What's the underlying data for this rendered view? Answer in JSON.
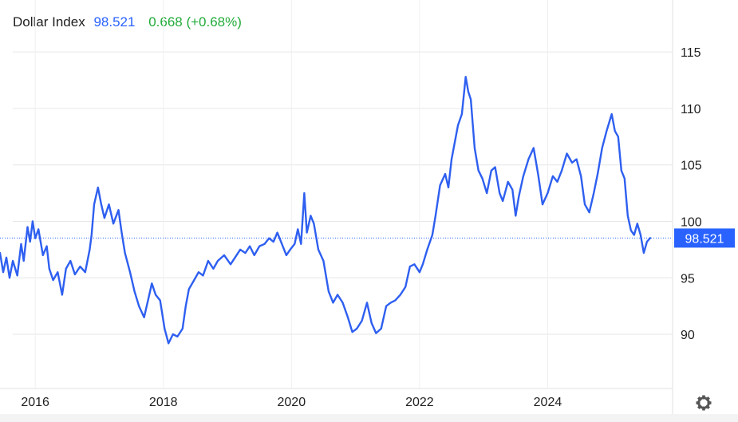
{
  "header": {
    "title": "Dollar Index",
    "price": "98.521",
    "change": "0.668 (+0.68%)"
  },
  "colors": {
    "line": "#2e5ff0",
    "price_badge": "#2962ff",
    "change_up": "#22ab3a",
    "grid": "#e6e6e6"
  },
  "icons": {
    "settings": "gear-icon"
  },
  "chart_data": {
    "type": "line",
    "title": "Dollar Index",
    "xlabel": "",
    "ylabel": "",
    "x_ticks": [
      "2016",
      "2018",
      "2020",
      "2022",
      "2024"
    ],
    "y_ticks": [
      90,
      95,
      100,
      105,
      110,
      115
    ],
    "xlim": [
      2015.45,
      2025.95
    ],
    "ylim": [
      85.2,
      119.6
    ],
    "grid": true,
    "last_value": 98.521,
    "series": [
      {
        "values": [
          [
            2015.45,
            97.2
          ],
          [
            2015.5,
            95.5
          ],
          [
            2015.55,
            96.8
          ],
          [
            2015.6,
            95.0
          ],
          [
            2015.65,
            96.5
          ],
          [
            2015.72,
            95.2
          ],
          [
            2015.78,
            98.0
          ],
          [
            2015.82,
            96.5
          ],
          [
            2015.88,
            99.5
          ],
          [
            2015.92,
            98.2
          ],
          [
            2015.96,
            100.0
          ],
          [
            2016.0,
            98.5
          ],
          [
            2016.05,
            99.3
          ],
          [
            2016.12,
            97.0
          ],
          [
            2016.18,
            97.8
          ],
          [
            2016.22,
            95.8
          ],
          [
            2016.28,
            94.8
          ],
          [
            2016.35,
            95.5
          ],
          [
            2016.42,
            93.5
          ],
          [
            2016.48,
            95.8
          ],
          [
            2016.55,
            96.5
          ],
          [
            2016.62,
            95.3
          ],
          [
            2016.7,
            96.0
          ],
          [
            2016.78,
            95.5
          ],
          [
            2016.85,
            97.5
          ],
          [
            2016.88,
            98.8
          ],
          [
            2016.92,
            101.5
          ],
          [
            2016.98,
            103.0
          ],
          [
            2017.03,
            101.5
          ],
          [
            2017.08,
            100.3
          ],
          [
            2017.15,
            101.5
          ],
          [
            2017.22,
            99.8
          ],
          [
            2017.3,
            101.0
          ],
          [
            2017.35,
            99.0
          ],
          [
            2017.4,
            97.2
          ],
          [
            2017.48,
            95.5
          ],
          [
            2017.55,
            93.8
          ],
          [
            2017.62,
            92.5
          ],
          [
            2017.7,
            91.5
          ],
          [
            2017.76,
            93.0
          ],
          [
            2017.82,
            94.5
          ],
          [
            2017.88,
            93.5
          ],
          [
            2017.95,
            93.0
          ],
          [
            2018.02,
            90.5
          ],
          [
            2018.08,
            89.2
          ],
          [
            2018.15,
            90.0
          ],
          [
            2018.22,
            89.8
          ],
          [
            2018.3,
            90.5
          ],
          [
            2018.35,
            92.5
          ],
          [
            2018.4,
            94.0
          ],
          [
            2018.48,
            94.8
          ],
          [
            2018.55,
            95.5
          ],
          [
            2018.62,
            95.2
          ],
          [
            2018.7,
            96.5
          ],
          [
            2018.78,
            95.8
          ],
          [
            2018.85,
            96.5
          ],
          [
            2018.95,
            97.0
          ],
          [
            2019.05,
            96.2
          ],
          [
            2019.12,
            96.8
          ],
          [
            2019.2,
            97.5
          ],
          [
            2019.28,
            97.2
          ],
          [
            2019.35,
            97.8
          ],
          [
            2019.42,
            97.0
          ],
          [
            2019.5,
            97.8
          ],
          [
            2019.58,
            98.0
          ],
          [
            2019.65,
            98.5
          ],
          [
            2019.72,
            98.2
          ],
          [
            2019.78,
            99.0
          ],
          [
            2019.85,
            98.0
          ],
          [
            2019.92,
            97.0
          ],
          [
            2019.98,
            97.5
          ],
          [
            2020.05,
            98.0
          ],
          [
            2020.1,
            99.3
          ],
          [
            2020.15,
            98.0
          ],
          [
            2020.2,
            102.5
          ],
          [
            2020.24,
            99.0
          ],
          [
            2020.3,
            100.5
          ],
          [
            2020.35,
            99.8
          ],
          [
            2020.42,
            97.5
          ],
          [
            2020.5,
            96.5
          ],
          [
            2020.58,
            93.8
          ],
          [
            2020.65,
            92.8
          ],
          [
            2020.72,
            93.5
          ],
          [
            2020.8,
            92.8
          ],
          [
            2020.88,
            91.5
          ],
          [
            2020.95,
            90.2
          ],
          [
            2021.02,
            90.5
          ],
          [
            2021.1,
            91.2
          ],
          [
            2021.18,
            92.8
          ],
          [
            2021.25,
            91.0
          ],
          [
            2021.32,
            90.1
          ],
          [
            2021.4,
            90.5
          ],
          [
            2021.48,
            92.5
          ],
          [
            2021.55,
            92.8
          ],
          [
            2021.62,
            93.0
          ],
          [
            2021.7,
            93.5
          ],
          [
            2021.78,
            94.2
          ],
          [
            2021.85,
            96.0
          ],
          [
            2021.92,
            96.2
          ],
          [
            2022.0,
            95.5
          ],
          [
            2022.05,
            96.2
          ],
          [
            2022.12,
            97.5
          ],
          [
            2022.2,
            98.8
          ],
          [
            2022.25,
            100.5
          ],
          [
            2022.32,
            103.2
          ],
          [
            2022.4,
            104.2
          ],
          [
            2022.45,
            103.0
          ],
          [
            2022.5,
            105.5
          ],
          [
            2022.55,
            107.0
          ],
          [
            2022.6,
            108.5
          ],
          [
            2022.66,
            109.5
          ],
          [
            2022.72,
            112.8
          ],
          [
            2022.76,
            111.5
          ],
          [
            2022.8,
            110.8
          ],
          [
            2022.86,
            106.5
          ],
          [
            2022.92,
            104.5
          ],
          [
            2022.98,
            103.8
          ],
          [
            2023.05,
            102.5
          ],
          [
            2023.12,
            104.5
          ],
          [
            2023.18,
            104.8
          ],
          [
            2023.25,
            102.5
          ],
          [
            2023.3,
            101.8
          ],
          [
            2023.38,
            103.5
          ],
          [
            2023.45,
            102.8
          ],
          [
            2023.5,
            100.5
          ],
          [
            2023.55,
            102.2
          ],
          [
            2023.62,
            104.0
          ],
          [
            2023.7,
            105.5
          ],
          [
            2023.78,
            106.5
          ],
          [
            2023.85,
            104.2
          ],
          [
            2023.92,
            101.5
          ],
          [
            2024.0,
            102.5
          ],
          [
            2024.08,
            104.0
          ],
          [
            2024.15,
            103.5
          ],
          [
            2024.22,
            104.5
          ],
          [
            2024.3,
            106.0
          ],
          [
            2024.38,
            105.2
          ],
          [
            2024.45,
            105.5
          ],
          [
            2024.52,
            104.0
          ],
          [
            2024.58,
            101.5
          ],
          [
            2024.65,
            100.8
          ],
          [
            2024.72,
            102.5
          ],
          [
            2024.78,
            104.2
          ],
          [
            2024.85,
            106.5
          ],
          [
            2024.92,
            108.0
          ],
          [
            2025.0,
            109.5
          ],
          [
            2025.05,
            108.0
          ],
          [
            2025.1,
            107.5
          ],
          [
            2025.15,
            104.5
          ],
          [
            2025.2,
            103.8
          ],
          [
            2025.25,
            100.5
          ],
          [
            2025.3,
            99.2
          ],
          [
            2025.35,
            98.8
          ],
          [
            2025.4,
            99.8
          ],
          [
            2025.45,
            98.8
          ],
          [
            2025.5,
            97.2
          ],
          [
            2025.55,
            98.2
          ],
          [
            2025.6,
            98.52
          ]
        ]
      }
    ]
  }
}
